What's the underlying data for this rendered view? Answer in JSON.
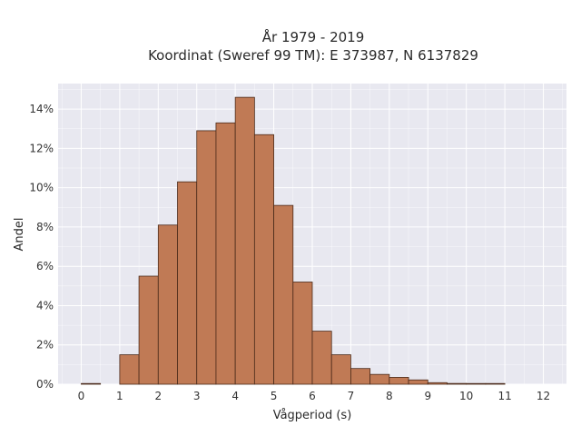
{
  "chart_data": {
    "type": "bar",
    "title_line1": "År 1979 - 2019",
    "title_line2": "Koordinat (Sweref 99 TM): E 373987, N 6137829",
    "xlabel": "Vågperiod (s)",
    "ylabel": "Andel",
    "xlim": [
      -0.6,
      12.6
    ],
    "ylim": [
      0,
      15.3
    ],
    "x_ticks": [
      0,
      1,
      2,
      3,
      4,
      5,
      6,
      7,
      8,
      9,
      10,
      11,
      12
    ],
    "y_ticks": [
      0,
      2,
      4,
      6,
      8,
      10,
      12,
      14
    ],
    "y_tick_labels": [
      "0%",
      "2%",
      "4%",
      "6%",
      "8%",
      "10%",
      "12%",
      "14%"
    ],
    "bin_width": 0.5,
    "bins": [
      {
        "x0": 0.0,
        "value": 0.0
      },
      {
        "x0": 1.0,
        "value": 1.5
      },
      {
        "x0": 1.5,
        "value": 5.5
      },
      {
        "x0": 2.0,
        "value": 8.1
      },
      {
        "x0": 2.5,
        "value": 10.3
      },
      {
        "x0": 3.0,
        "value": 12.9
      },
      {
        "x0": 3.5,
        "value": 13.3
      },
      {
        "x0": 4.0,
        "value": 14.6
      },
      {
        "x0": 4.5,
        "value": 12.7
      },
      {
        "x0": 5.0,
        "value": 9.1
      },
      {
        "x0": 5.5,
        "value": 5.2
      },
      {
        "x0": 6.0,
        "value": 2.7
      },
      {
        "x0": 6.5,
        "value": 1.5
      },
      {
        "x0": 7.0,
        "value": 0.8
      },
      {
        "x0": 7.5,
        "value": 0.5
      },
      {
        "x0": 8.0,
        "value": 0.35
      },
      {
        "x0": 8.5,
        "value": 0.22
      },
      {
        "x0": 9.0,
        "value": 0.08
      },
      {
        "x0": 9.5,
        "value": 0.04
      },
      {
        "x0": 10.0,
        "value": 0.02
      },
      {
        "x0": 10.5,
        "value": 0.01
      }
    ],
    "grid": true,
    "colors": {
      "bar": "#c07a55",
      "bar_edge": "#4a2a1a",
      "plot_bg": "#e8e8f0"
    }
  }
}
